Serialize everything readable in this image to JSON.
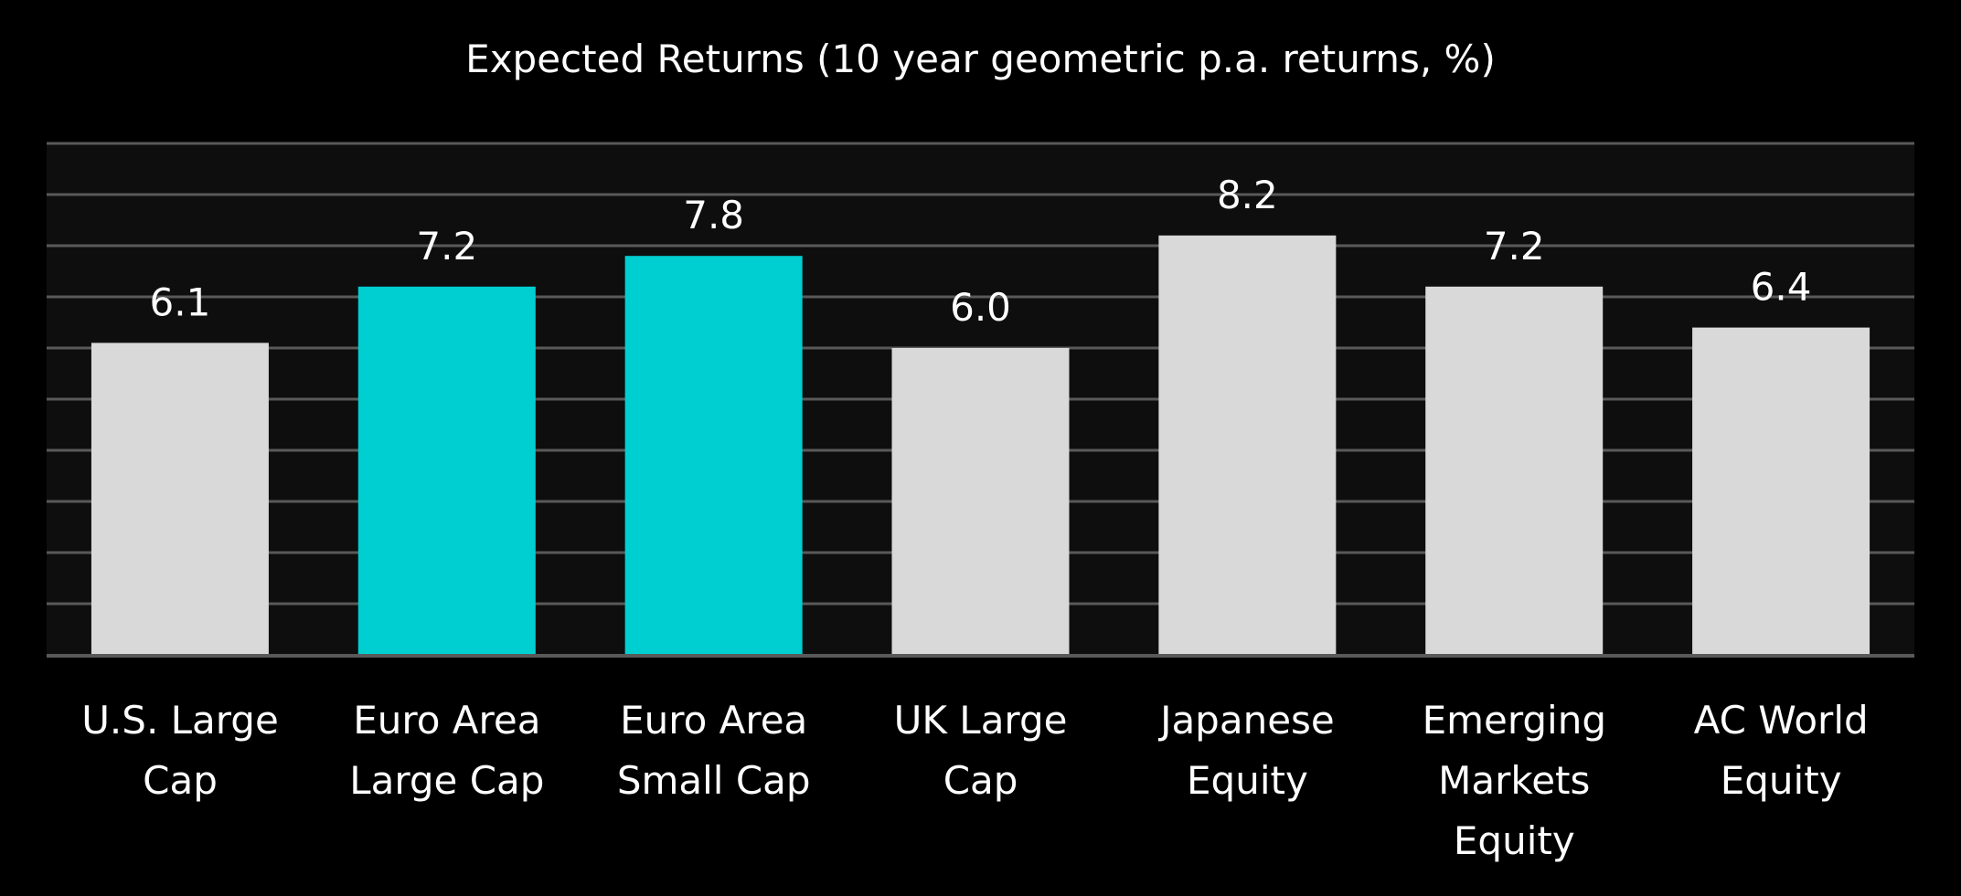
{
  "chart_data": {
    "type": "bar",
    "title": "Expected Returns (10 year geometric p.a. returns, %)",
    "categories": [
      [
        "U.S. Large",
        "Cap"
      ],
      [
        "Euro Area",
        "Large Cap"
      ],
      [
        "Euro Area",
        "Small Cap"
      ],
      [
        "UK Large",
        "Cap"
      ],
      [
        "Japanese",
        "Equity"
      ],
      [
        "Emerging",
        "Markets",
        "Equity"
      ],
      [
        "AC World",
        "Equity"
      ]
    ],
    "values": [
      6.1,
      7.2,
      7.8,
      6.0,
      8.2,
      7.2,
      6.4
    ],
    "value_labels": [
      "6.1",
      "7.2",
      "7.8",
      "6.0",
      "8.2",
      "7.2",
      "6.4"
    ],
    "highlight": [
      false,
      true,
      true,
      false,
      false,
      false,
      false
    ],
    "colors": {
      "default": "#d9d9d9",
      "highlight": "#00cfd1",
      "plot_bg": "#0e0e0e",
      "grid": "#595959"
    },
    "xlabel": "",
    "ylabel": "",
    "ylim": [
      0,
      10
    ],
    "grid": true
  }
}
